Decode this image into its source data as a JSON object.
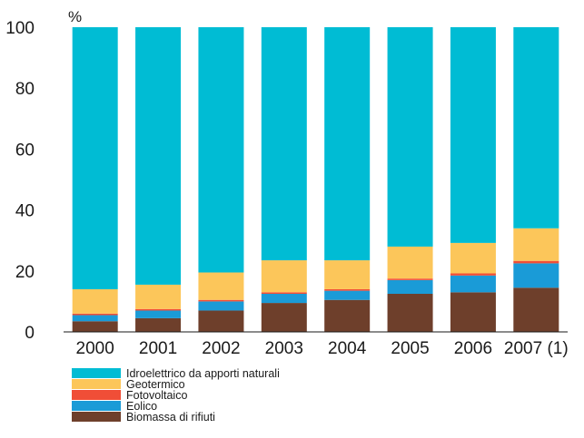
{
  "chart_data": {
    "type": "bar",
    "stacked": true,
    "unit_label": "%",
    "categories": [
      "2000",
      "2001",
      "2002",
      "2003",
      "2004",
      "2005",
      "2006",
      "2007 (1)"
    ],
    "ylim": [
      0,
      100
    ],
    "yticks": [
      0,
      20,
      40,
      60,
      80,
      100
    ],
    "grid": false,
    "legend_placement": "bottom-left",
    "series": [
      {
        "name": "Biomassa di rifiuti",
        "color": "#6e3f2b",
        "values": [
          3.5,
          4.5,
          7,
          9.5,
          10.5,
          12.5,
          13,
          14.5
        ]
      },
      {
        "name": "Eolico",
        "color": "#1a9bd7",
        "values": [
          2,
          2.5,
          3,
          3,
          3,
          4.5,
          5.5,
          8
        ]
      },
      {
        "name": "Fotovoltaico",
        "color": "#f04e37",
        "values": [
          0.5,
          0.5,
          0.5,
          0.5,
          0.5,
          0.5,
          0.7,
          0.8
        ]
      },
      {
        "name": "Geotermico",
        "color": "#fcc65a",
        "values": [
          8,
          8,
          9,
          10.5,
          9.5,
          10.5,
          10,
          10.7
        ]
      },
      {
        "name": "Idroelettrico da apporti naturali",
        "color": "#00bcd4",
        "values": [
          86,
          84.5,
          80.5,
          76.5,
          76.5,
          72,
          70.8,
          66
        ]
      }
    ],
    "legend_order": [
      "Idroelettrico da apporti naturali",
      "Geotermico",
      "Fotovoltaico",
      "Eolico",
      "Biomassa di rifiuti"
    ]
  }
}
